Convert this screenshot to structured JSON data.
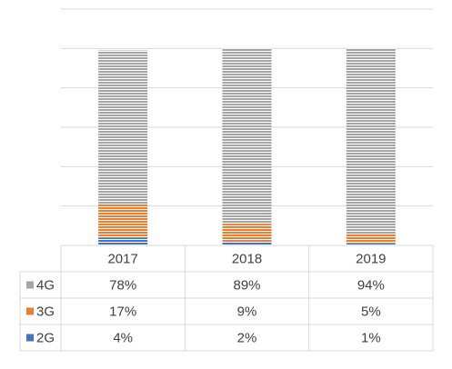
{
  "chart_data": {
    "type": "bar",
    "stacked": true,
    "percent_stacked": true,
    "categories": [
      "2017",
      "2018",
      "2019"
    ],
    "ylim": [
      0,
      120
    ],
    "gridline_step": 20,
    "grid": true,
    "legend": "data-table",
    "series": [
      {
        "name": "2G",
        "values": [
          4,
          2,
          1
        ],
        "labels": [
          "4%",
          "2%",
          "1%"
        ],
        "color": "#4472C4"
      },
      {
        "name": "3G",
        "values": [
          17,
          9,
          5
        ],
        "labels": [
          "17%",
          "9%",
          "5%"
        ],
        "color": "#ED7D31"
      },
      {
        "name": "4G",
        "values": [
          78,
          89,
          94
        ],
        "labels": [
          "78%",
          "89%",
          "94%"
        ],
        "color": "#A5A5A5"
      }
    ]
  }
}
